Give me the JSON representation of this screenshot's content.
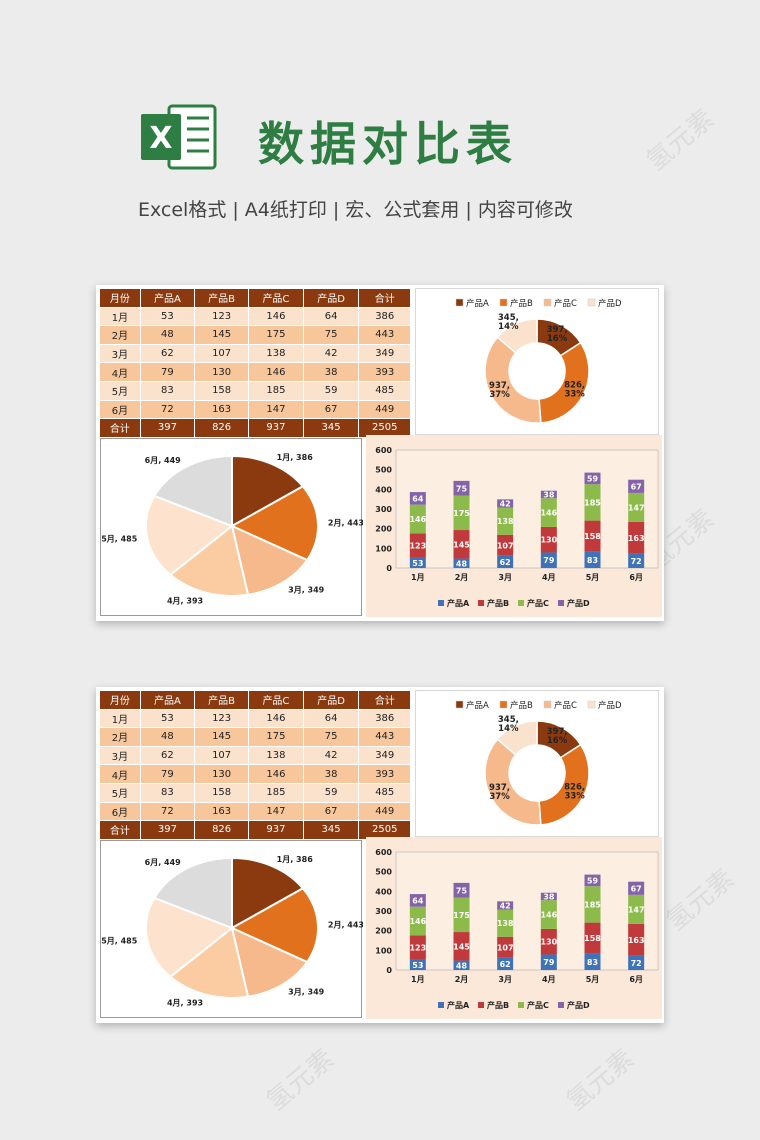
{
  "header": {
    "title": "数据对比表",
    "subtitle": "Excel格式 |  A4纸打印 | 宏、公式套用 | 内容可修改",
    "logo_letter": "X"
  },
  "watermark_text": "氢元素",
  "colors": {
    "product_a": "#8b3a10",
    "product_b": "#e2711d",
    "product_c": "#f6b98c",
    "product_d": "#fbe2cc",
    "bar_a": "#3e73b9",
    "bar_b": "#c0393b",
    "bar_c": "#8dbb4b",
    "bar_d": "#8463a9",
    "title_green": "#2e7d42"
  },
  "table": {
    "headers": [
      "月份",
      "产品A",
      "产品B",
      "产品C",
      "产品D",
      "合计"
    ],
    "rows": [
      [
        "1月",
        "53",
        "123",
        "146",
        "64",
        "386"
      ],
      [
        "2月",
        "48",
        "145",
        "175",
        "75",
        "443"
      ],
      [
        "3月",
        "62",
        "107",
        "138",
        "42",
        "349"
      ],
      [
        "4月",
        "79",
        "130",
        "146",
        "38",
        "393"
      ],
      [
        "5月",
        "83",
        "158",
        "185",
        "59",
        "485"
      ],
      [
        "6月",
        "72",
        "163",
        "147",
        "67",
        "449"
      ]
    ],
    "total": [
      "合计",
      "397",
      "826",
      "937",
      "345",
      "2505"
    ]
  },
  "chart_data": [
    {
      "type": "pie",
      "chart": "donut",
      "legend": "top",
      "categories": [
        "产品A",
        "产品B",
        "产品C",
        "产品D"
      ],
      "values": [
        397,
        826,
        937,
        345
      ],
      "labels": [
        "397,\n16%",
        "826,\n33%",
        "937,\n37%",
        "345,\n14%"
      ]
    },
    {
      "type": "pie",
      "categories": [
        "1月",
        "2月",
        "3月",
        "4月",
        "5月",
        "6月"
      ],
      "values": [
        386,
        443,
        349,
        393,
        485,
        449
      ],
      "labels": [
        "1月, 386",
        "2月, 443",
        "3月, 349",
        "4月, 393",
        "5月, 485",
        "6月, 449"
      ],
      "colors": [
        "#8b3a10",
        "#e2711d",
        "#f6b98c",
        "#fbcba2",
        "#fde3cd",
        "#dcdcdc"
      ]
    },
    {
      "type": "bar",
      "stacked": true,
      "legend": "bottom",
      "categories": [
        "1月",
        "2月",
        "3月",
        "4月",
        "5月",
        "6月"
      ],
      "ylim": [
        0,
        600
      ],
      "yticks": [
        "0",
        "100",
        "200",
        "300",
        "400",
        "500",
        "600"
      ],
      "series": [
        {
          "name": "产品A",
          "values": [
            53,
            48,
            62,
            79,
            83,
            72
          ]
        },
        {
          "name": "产品B",
          "values": [
            123,
            145,
            107,
            130,
            158,
            163
          ]
        },
        {
          "name": "产品C",
          "values": [
            146,
            175,
            138,
            146,
            185,
            147
          ]
        },
        {
          "name": "产品D",
          "values": [
            64,
            75,
            42,
            38,
            59,
            67
          ]
        }
      ]
    }
  ]
}
